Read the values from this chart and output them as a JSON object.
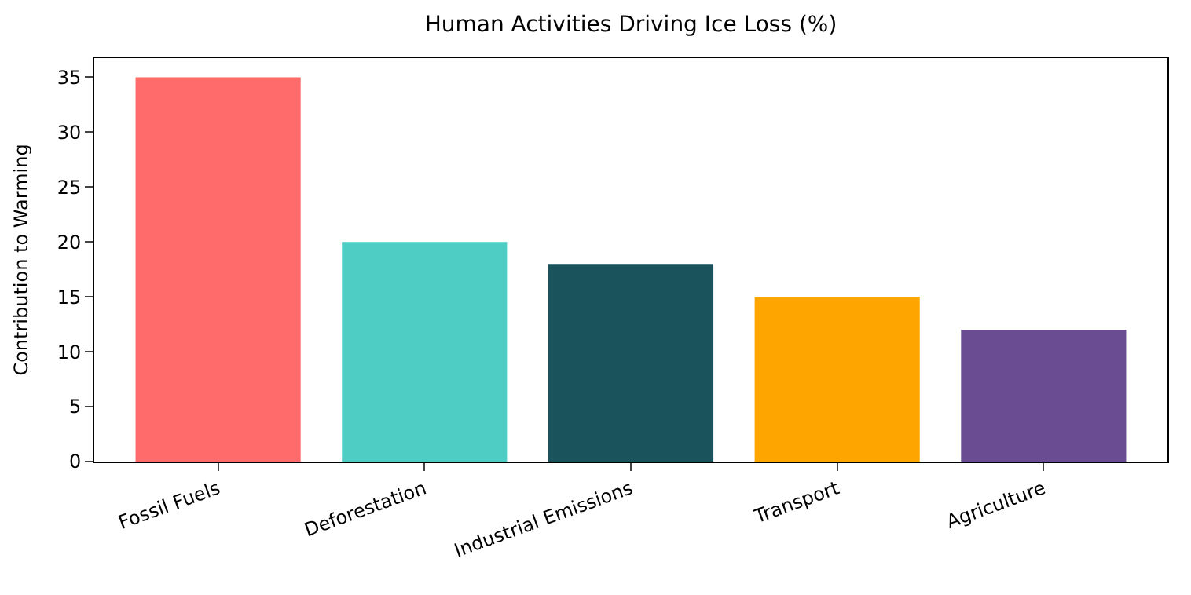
{
  "chart_data": {
    "type": "bar",
    "title": "Human Activities Driving Ice Loss (%)",
    "ylabel": "Contribution to Warming",
    "categories": [
      "Fossil Fuels",
      "Deforestation",
      "Industrial Emissions",
      "Transport",
      "Agriculture"
    ],
    "values": [
      35,
      20,
      18,
      15,
      12
    ],
    "colors": [
      "#ff6b6b",
      "#4ecdc4",
      "#1a535c",
      "#ffa500",
      "#6a4c93"
    ],
    "ylim": [
      0,
      36.75
    ],
    "yticks": [
      0,
      5,
      10,
      15,
      20,
      25,
      30,
      35
    ],
    "grid": false,
    "legend": false
  }
}
